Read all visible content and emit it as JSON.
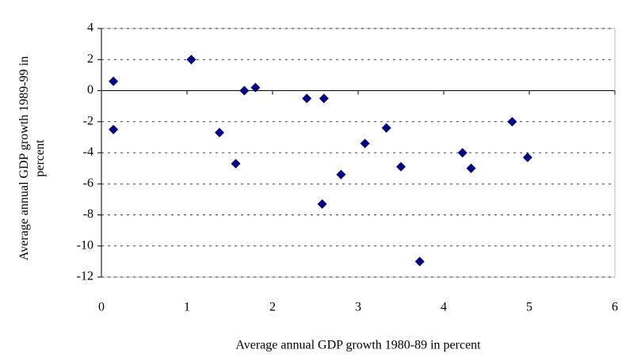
{
  "chart_data": {
    "type": "scatter",
    "x_label": "Average annual GDP growth 1980-89 in percent",
    "y_label": "Average annual GDP growth 1989-99 in percent",
    "x": [
      0.14,
      0.14,
      1.05,
      1.38,
      1.57,
      1.67,
      1.8,
      2.4,
      2.6,
      2.58,
      2.8,
      3.08,
      3.33,
      3.5,
      3.72,
      4.22,
      4.32,
      4.8,
      4.98
    ],
    "y": [
      0.6,
      -2.5,
      2.0,
      -2.7,
      -4.7,
      0.0,
      0.2,
      -0.5,
      -0.5,
      -7.3,
      -5.4,
      -3.4,
      -2.4,
      -4.9,
      -11.0,
      -4.0,
      -5.0,
      -2.0,
      -4.3
    ],
    "color": "#000080",
    "xlim": [
      0,
      6
    ],
    "xticks": [
      0,
      1,
      2,
      3,
      4,
      5,
      6
    ],
    "ylim": [
      -12,
      4
    ],
    "yticks": [
      -12,
      -10,
      -8,
      -6,
      -4,
      -2,
      0,
      2,
      4
    ],
    "grid": true
  }
}
